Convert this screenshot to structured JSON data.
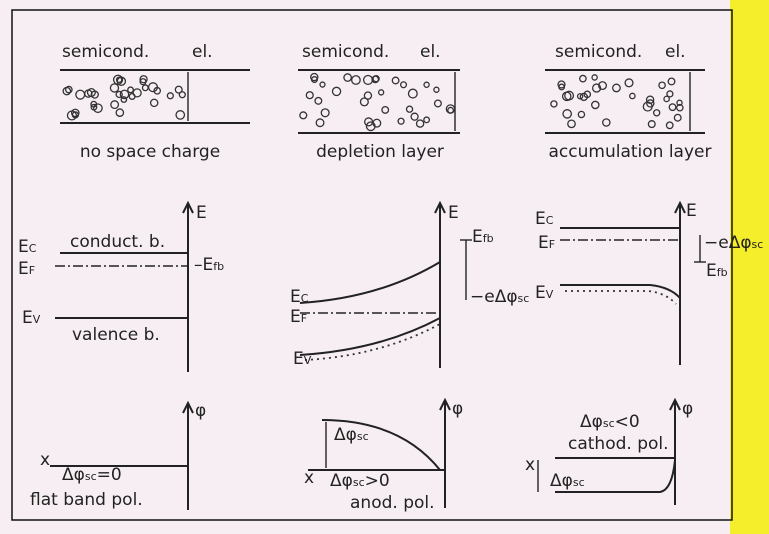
{
  "columns": [
    {
      "header_left": "semicond.",
      "header_right": "el.",
      "charge": "no space charge",
      "energy_axis": "E",
      "ec": {
        "main": "E",
        "sub": "C"
      },
      "ef": {
        "main": "E",
        "sub": "F"
      },
      "conduction": "conduct. b.",
      "efb": {
        "main": "–E",
        "sub": "fb"
      },
      "ev": {
        "main": "E",
        "sub": "V"
      },
      "valence": "valence b.",
      "phi_axis": "φ",
      "x_axis": "x",
      "potential": {
        "main": "Δφ",
        "sub": "sc",
        "rest": "=0"
      },
      "polarization": "flat band pol."
    },
    {
      "header_left": "semicond.",
      "header_right": "el.",
      "charge": "depletion layer",
      "energy_axis": "E",
      "efb": {
        "main": "E",
        "sub": "fb"
      },
      "shift": {
        "main": "−eΔφ",
        "sub": "sc"
      },
      "ec": {
        "main": "E",
        "sub": "C"
      },
      "ef": {
        "main": "E",
        "sub": "F"
      },
      "ev": {
        "main": "E",
        "sub": "V"
      },
      "phi_axis": "φ",
      "delta": {
        "main": "Δφ",
        "sub": "sc"
      },
      "x_axis": "x",
      "potential": {
        "main": "Δφ",
        "sub": "sc",
        "rest": ">0"
      },
      "polarization": "anod. pol."
    },
    {
      "header_left": "semicond.",
      "header_right": "el.",
      "charge": "accumulation layer",
      "ec": {
        "main": "E",
        "sub": "C"
      },
      "ef": {
        "main": "E",
        "sub": "F"
      },
      "energy_axis": "E",
      "shift": {
        "main": "−eΔφ",
        "sub": "sc"
      },
      "efb": {
        "main": "E",
        "sub": "fb"
      },
      "ev": {
        "main": "E",
        "sub": "V"
      },
      "potential": {
        "main": "Δφ",
        "sub": "sc",
        "rest": "<0"
      },
      "phi_axis": "φ",
      "polarization": "cathod. pol.",
      "x_axis": "x",
      "delta": {
        "main": "Δφ",
        "sub": "sc"
      }
    }
  ]
}
